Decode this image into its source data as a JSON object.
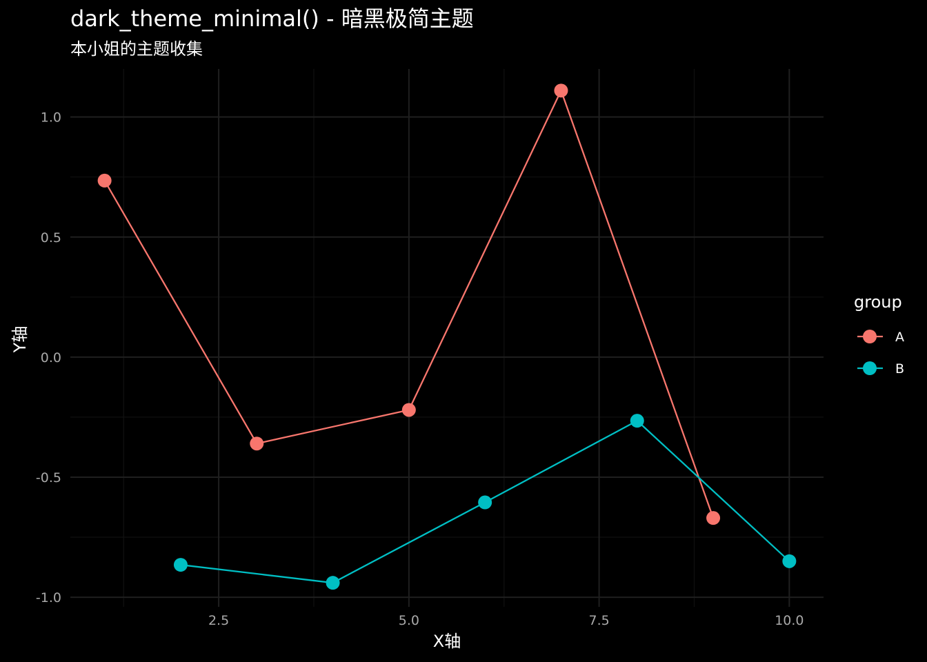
{
  "chart_data": {
    "type": "line",
    "title": "dark_theme_minimal() - 暗黑极简主题",
    "subtitle": "本小姐的主题收集",
    "xlabel": "X轴",
    "ylabel": "Y轴",
    "xlim": [
      0.55,
      10.45
    ],
    "ylim": [
      -1.04,
      1.2
    ],
    "x_ticks": [
      2.5,
      5.0,
      7.5,
      10.0
    ],
    "x_tick_labels": [
      "2.5",
      "5.0",
      "7.5",
      "10.0"
    ],
    "x_minor_ticks": [
      1.25,
      3.75,
      6.25,
      8.75
    ],
    "y_ticks": [
      1.0,
      0.5,
      0.0,
      -0.5,
      -1.0
    ],
    "y_tick_labels": [
      "1.0",
      "0.5",
      "0.0",
      "-0.5",
      "-1.0"
    ],
    "y_minor_ticks": [
      0.75,
      0.25,
      -0.25,
      -0.75
    ],
    "grid": true,
    "legend_position": "right",
    "legend_title": "group",
    "series": [
      {
        "name": "A",
        "color": "#F8766D",
        "x": [
          1,
          3,
          5,
          7,
          9
        ],
        "y": [
          0.735,
          -0.36,
          -0.22,
          1.11,
          -0.67
        ]
      },
      {
        "name": "B",
        "color": "#00BFC4",
        "x": [
          2,
          4,
          6,
          8,
          10
        ],
        "y": [
          -0.865,
          -0.94,
          -0.605,
          -0.265,
          -0.85
        ]
      }
    ]
  }
}
